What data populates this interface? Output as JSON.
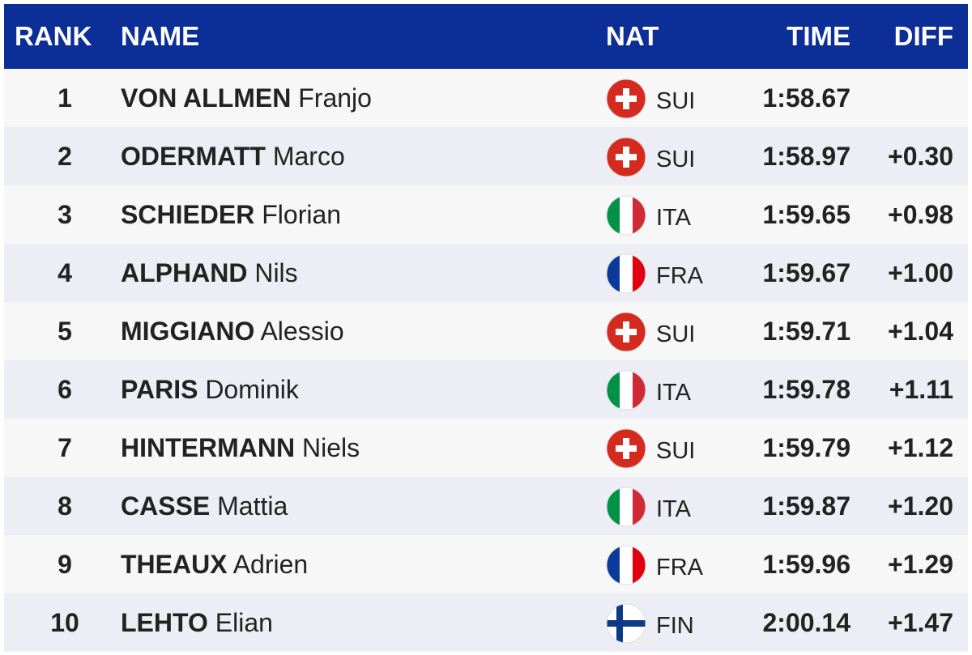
{
  "header": {
    "rank": "RANK",
    "name": "NAME",
    "nat": "NAT",
    "time": "TIME",
    "diff": "DIFF"
  },
  "rows": [
    {
      "rank": "1",
      "last": "VON ALLMEN",
      "first": "Franjo",
      "nat": "SUI",
      "time": "1:58.67"
    },
    {
      "rank": "2",
      "last": "ODERMATT",
      "first": "Marco",
      "nat": "SUI",
      "time": "1:58.97",
      "diff": "+0.30"
    },
    {
      "rank": "3",
      "last": "SCHIEDER",
      "first": "Florian",
      "nat": "ITA",
      "time": "1:59.65",
      "diff": "+0.98"
    },
    {
      "rank": "4",
      "last": "ALPHAND",
      "first": "Nils",
      "nat": "FRA",
      "time": "1:59.67",
      "diff": "+1.00"
    },
    {
      "rank": "5",
      "last": "MIGGIANO",
      "first": "Alessio",
      "nat": "SUI",
      "time": "1:59.71",
      "diff": "+1.04"
    },
    {
      "rank": "6",
      "last": "PARIS",
      "first": "Dominik",
      "nat": "ITA",
      "time": "1:59.78",
      "diff": "+1.11"
    },
    {
      "rank": "7",
      "last": "HINTERMANN",
      "first": "Niels",
      "nat": "SUI",
      "time": "1:59.79",
      "diff": "+1.12"
    },
    {
      "rank": "8",
      "last": "CASSE",
      "first": "Mattia",
      "nat": "ITA",
      "time": "1:59.87",
      "diff": "+1.20"
    },
    {
      "rank": "9",
      "last": "THEAUX",
      "first": "Adrien",
      "nat": "FRA",
      "time": "1:59.96",
      "diff": "+1.29"
    },
    {
      "rank": "10",
      "last": "LEHTO",
      "first": "Elian",
      "nat": "FIN",
      "time": "2:00.14",
      "diff": "+1.47"
    }
  ]
}
